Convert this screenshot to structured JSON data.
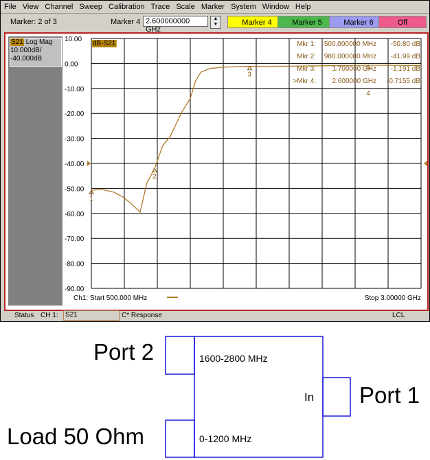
{
  "menu": [
    "File",
    "View",
    "Channel",
    "Sweep",
    "Calibration",
    "Trace",
    "Scale",
    "Marker",
    "System",
    "Window",
    "Help"
  ],
  "toolbar": {
    "marker_status": "Marker: 2 of 3",
    "marker_field_label": "Marker 4",
    "marker_value": "2.600000000 GHz",
    "buttons": [
      {
        "label": "Marker 4",
        "color": "#ffff00"
      },
      {
        "label": "Marker 5",
        "color": "#4cb84c"
      },
      {
        "label": "Marker 6",
        "color": "#9b9bf0"
      },
      {
        "label": "Off",
        "color": "#ee5a8c"
      }
    ]
  },
  "trace_info": {
    "param": "S21",
    "format": "Log Mag",
    "scale": "10.000dB/",
    "ref": "-40.000dB"
  },
  "trace_label": "dB-S21",
  "markers": [
    {
      "name": "Mkr 1:",
      "freq": "500.000000 MHz",
      "value": "-50.80 dB"
    },
    {
      "name": "Mkr 2:",
      "freq": "980.000000 MHz",
      "value": "-41.99 dB"
    },
    {
      "name": "Mkr 3:",
      "freq": "1.700000 GHz",
      "value": "-1.191 dB"
    },
    {
      "name": ">Mkr 4:",
      "freq": "2.600000 GHz",
      "value": "-0.7155 dB"
    }
  ],
  "footer": {
    "start": "Ch1: Start  500.000 MHz",
    "stop": "Stop  3.00000 GHz"
  },
  "status": {
    "label": "Status",
    "channel": "CH 1:",
    "param": "S21",
    "mode": "C* Response",
    "lcl": "LCL"
  },
  "chart_data": {
    "type": "line",
    "xlim": [
      0.5,
      3.0
    ],
    "ylim": [
      -90,
      10
    ],
    "y_ticks": [
      "10.00",
      "0.00",
      "-10.00",
      "-20.00",
      "-30.00",
      "-40.00",
      "-50.00",
      "-60.00",
      "-70.00",
      "-80.00",
      "-90.00"
    ],
    "grid": true,
    "trace_color": "#b07a2a",
    "series": [
      {
        "x": [
          0.5,
          0.57,
          0.67,
          0.74,
          0.8,
          0.87,
          0.92,
          0.98,
          1.04,
          1.1,
          1.18,
          1.25,
          1.29,
          1.33,
          1.4,
          1.5,
          1.7,
          2.0,
          2.3,
          2.6,
          3.0
        ],
        "y": [
          -50.8,
          -50.3,
          -51.5,
          -53.5,
          -56,
          -59.5,
          -48,
          -41.99,
          -33,
          -29,
          -20,
          -14,
          -7,
          -3.5,
          -2,
          -1.5,
          -1.19,
          -1.1,
          -0.9,
          -0.72,
          -0.8
        ]
      }
    ],
    "marker_points": [
      {
        "label": "1",
        "x": 0.5,
        "y": -50.8
      },
      {
        "label": "2",
        "x": 0.98,
        "y": -41.99
      },
      {
        "label": "3",
        "x": 1.7,
        "y": -1.191
      },
      {
        "label": "4",
        "x": 2.6,
        "y": -0.7155
      }
    ]
  },
  "diagram": {
    "port2": "Port 2",
    "port1": "Port 1",
    "load": "Load 50 Ohm",
    "high_band": "1600-2800 MHz",
    "low_band": "0-1200 MHz",
    "input": "In",
    "line_color": "#1a1adc"
  }
}
